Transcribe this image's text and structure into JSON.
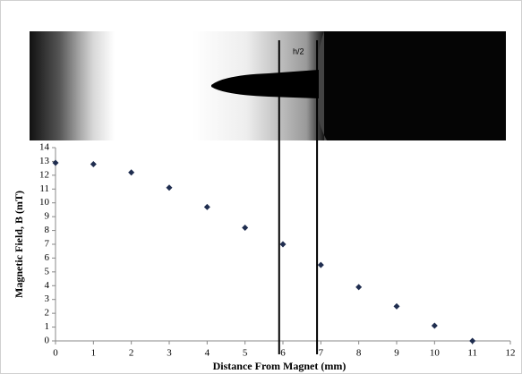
{
  "chart_data": {
    "type": "scatter",
    "annotation": "h/2",
    "xlabel": "Distance From Magnet (mm)",
    "ylabel": "Magnetic Field, B (mT)",
    "x": [
      0,
      1,
      2,
      3,
      4,
      5,
      6,
      7,
      8,
      9,
      10,
      11
    ],
    "values": [
      12.9,
      12.8,
      12.2,
      11.1,
      9.7,
      8.2,
      7.0,
      5.5,
      3.9,
      2.5,
      1.1,
      0
    ],
    "color": "#1f2d4f",
    "vertical_lines": [
      5.9,
      6.9
    ],
    "xlim": [
      0,
      12
    ],
    "xticks": [
      0,
      1,
      2,
      3,
      4,
      5,
      6,
      7,
      8,
      9,
      10,
      11,
      12
    ],
    "ylim": [
      0,
      14
    ],
    "yticks": [
      0,
      1,
      2,
      3,
      4,
      5,
      6,
      7,
      8,
      9,
      10,
      11,
      12,
      13,
      14
    ],
    "grid": false
  }
}
